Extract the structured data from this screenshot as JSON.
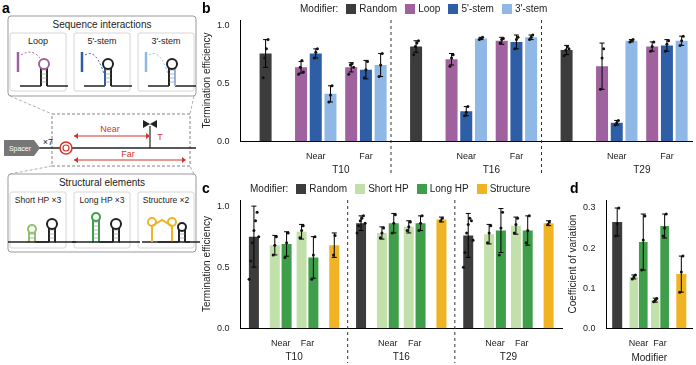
{
  "diagram": {
    "panel_label": "a",
    "sequence_interactions": {
      "title": "Sequence interactions",
      "items": [
        "Loop",
        "5'-stem",
        "3'-stem"
      ]
    },
    "construct": {
      "spacer": "Spacer",
      "spacer_count": "×7",
      "near": "Near",
      "far": "Far",
      "terminator": "T"
    },
    "structural_elements": {
      "title": "Structural elements",
      "items": [
        "Short HP ×3",
        "Long HP ×3",
        "Structure ×2"
      ]
    }
  },
  "chart_data": [
    {
      "panel_label": "b",
      "type": "bar",
      "legend_title": "Modifier:",
      "legend": "top",
      "grid": false,
      "y_label": "Termination efficiency",
      "categories": [
        null,
        "Near",
        "Far",
        null,
        "Near",
        "Far",
        null,
        "Near",
        "Far"
      ],
      "groups": [
        "T10",
        "T16",
        "T29"
      ],
      "ylim": [
        0,
        1.05
      ],
      "yticks": [
        {
          "value": 0,
          "label": "0.0"
        },
        0.5,
        {
          "value": 1,
          "label": "1.0"
        }
      ],
      "series": [
        {
          "name": "Random",
          "color": "#3c3c3c",
          "values": [
            0.76,
            null,
            null,
            0.82,
            null,
            null,
            0.79,
            null,
            null
          ],
          "errors": [
            0.12,
            null,
            null,
            0.05,
            null,
            null,
            0.04,
            null,
            null
          ],
          "points": [
            [
              0.55,
              0.72,
              0.8,
              0.88
            ],
            null,
            null,
            [
              0.75,
              0.82,
              0.85,
              0.87
            ],
            null,
            null,
            [
              0.74,
              0.79,
              0.82,
              0.8
            ],
            null,
            null
          ]
        },
        {
          "name": "Loop",
          "color": "#a0629e",
          "values": [
            null,
            0.64,
            0.64,
            null,
            0.71,
            0.87,
            null,
            0.65,
            0.82
          ],
          "errors": [
            null,
            0.05,
            0.04,
            null,
            0.05,
            0.03,
            null,
            0.2,
            0.04
          ],
          "points": [
            null,
            [
              0.58,
              0.64,
              0.7,
              0.6
            ],
            [
              0.58,
              0.66,
              0.67,
              0.64
            ],
            null,
            [
              0.65,
              0.72,
              0.75
            ],
            [
              0.85,
              0.88,
              0.89
            ],
            null,
            [
              0.45,
              0.72,
              0.8
            ],
            [
              0.78,
              0.82,
              0.86
            ]
          ]
        },
        {
          "name": "5'-stem",
          "color": "#2e5fa6",
          "values": [
            null,
            0.76,
            0.62,
            null,
            0.26,
            0.86,
            null,
            0.16,
            0.83
          ],
          "errors": [
            null,
            0.04,
            0.08,
            null,
            0.04,
            0.06,
            null,
            0.02,
            0.05
          ],
          "points": [
            null,
            [
              0.72,
              0.77,
              0.8
            ],
            [
              0.55,
              0.62,
              0.69
            ],
            null,
            [
              0.22,
              0.25,
              0.3
            ],
            [
              0.8,
              0.88,
              0.9
            ],
            null,
            [
              0.14,
              0.16,
              0.18
            ],
            [
              0.78,
              0.84,
              0.87
            ]
          ]
        },
        {
          "name": "3'-stem",
          "color": "#8fb8e6",
          "values": [
            null,
            0.41,
            0.66,
            null,
            0.89,
            0.9,
            null,
            0.87,
            0.87
          ],
          "errors": [
            null,
            0.07,
            0.1,
            null,
            0.01,
            0.02,
            null,
            0.01,
            0.04
          ],
          "points": [
            null,
            [
              0.34,
              0.4,
              0.48
            ],
            [
              0.56,
              0.66,
              0.76
            ],
            null,
            [
              0.88,
              0.89,
              0.9
            ],
            [
              0.88,
              0.9,
              0.92
            ],
            null,
            [
              0.86,
              0.87,
              0.88
            ],
            [
              0.83,
              0.87,
              0.91
            ]
          ]
        }
      ]
    },
    {
      "panel_label": "c",
      "type": "bar",
      "legend_title": "Modifier:",
      "legend": "top",
      "grid": false,
      "y_label": "Termination efficiency",
      "categories": [
        null,
        "Near",
        "Far",
        null,
        null,
        "Near",
        "Far",
        null,
        null,
        "Near",
        "Far",
        null
      ],
      "groups": [
        "T10",
        "T16",
        "T29"
      ],
      "ylim": [
        0,
        1.05
      ],
      "yticks": [
        {
          "value": 0,
          "label": "0.0"
        },
        0.5,
        {
          "value": 1,
          "label": "1.0"
        }
      ],
      "series": [
        {
          "name": "Random",
          "color": "#3c3c3c",
          "values": [
            0.75,
            null,
            null,
            null,
            0.86,
            null,
            null,
            null,
            0.76,
            null,
            null,
            null
          ],
          "errors": [
            0.25,
            null,
            null,
            null,
            0.06,
            null,
            null,
            null,
            0.18,
            null,
            null,
            null
          ],
          "points": [
            [
              0.4,
              0.55,
              0.7,
              0.8,
              0.88,
              0.95,
              0.75
            ],
            null,
            null,
            null,
            [
              0.78,
              0.84,
              0.88,
              0.9,
              0.92,
              0.86
            ],
            null,
            null,
            null,
            [
              0.5,
              0.62,
              0.78,
              0.85,
              0.9,
              0.88,
              0.72
            ],
            null,
            null,
            null
          ]
        },
        {
          "name": "Short HP",
          "color": "#c2e0a9",
          "values": [
            null,
            0.68,
            0.79,
            null,
            null,
            0.78,
            0.83,
            null,
            null,
            0.77,
            0.84,
            null
          ],
          "errors": [
            null,
            0.08,
            0.06,
            null,
            null,
            0.05,
            0.05,
            null,
            null,
            0.08,
            0.07,
            null
          ],
          "points": [
            null,
            [
              0.6,
              0.68,
              0.75
            ],
            [
              0.74,
              0.8,
              0.84
            ],
            null,
            null,
            [
              0.74,
              0.78,
              0.82
            ],
            [
              0.8,
              0.83,
              0.87
            ],
            null,
            null,
            [
              0.7,
              0.78,
              0.84
            ],
            [
              0.78,
              0.85,
              0.9
            ],
            null
          ]
        },
        {
          "name": "Long HP",
          "color": "#3f9e4a",
          "values": [
            null,
            0.69,
            0.58,
            null,
            null,
            0.86,
            0.86,
            null,
            null,
            0.8,
            0.8,
            null
          ],
          "errors": [
            null,
            0.1,
            0.17,
            null,
            null,
            0.08,
            0.06,
            null,
            null,
            0.18,
            0.12,
            null
          ],
          "points": [
            null,
            [
              0.58,
              0.7,
              0.78
            ],
            [
              0.4,
              0.6,
              0.75
            ],
            null,
            null,
            [
              0.78,
              0.86,
              0.93
            ],
            [
              0.8,
              0.86,
              0.92
            ],
            null,
            null,
            [
              0.6,
              0.82,
              0.95
            ],
            [
              0.7,
              0.8,
              0.92
            ],
            null
          ]
        },
        {
          "name": "Structure",
          "color": "#f0b323",
          "values": [
            null,
            null,
            null,
            0.68,
            null,
            null,
            null,
            0.89,
            null,
            null,
            null,
            0.86
          ],
          "errors": [
            null,
            null,
            null,
            0.1,
            null,
            null,
            null,
            0.02,
            null,
            null,
            null,
            0.02
          ],
          "points": [
            null,
            null,
            null,
            [
              0.6,
              0.76
            ],
            null,
            null,
            null,
            [
              0.88,
              0.9
            ],
            null,
            null,
            null,
            [
              0.85,
              0.87
            ]
          ]
        }
      ]
    },
    {
      "panel_label": "d",
      "type": "bar",
      "grid": false,
      "y_label": "Coefficient of variation",
      "x_label": "Modifier",
      "categories": [
        null,
        "Near",
        "Far",
        null
      ],
      "ylim": [
        0,
        0.32
      ],
      "yticks": [
        {
          "value": 0,
          "label": "0.0"
        },
        0.1,
        0.2,
        0.3
      ],
      "series": [
        {
          "color": "#3c3c3c",
          "values": [
            0.265,
            null,
            null,
            null
          ],
          "errors": [
            0.035,
            null,
            null,
            null
          ],
          "points": [
            [
              0.23,
              0.26,
              0.3
            ],
            null,
            null,
            null
          ]
        },
        {
          "color": "#c2e0a9",
          "values": [
            null,
            0.128,
            0.07,
            null
          ],
          "errors": [
            null,
            0.005,
            0.005,
            null
          ],
          "points": [
            null,
            [
              0.123,
              0.128,
              0.133
            ],
            [
              0.066,
              0.07,
              0.074
            ],
            null
          ]
        },
        {
          "color": "#3f9e4a",
          "values": [
            null,
            0.215,
            0.255,
            null
          ],
          "errors": [
            null,
            0.07,
            0.03,
            null
          ],
          "points": [
            null,
            [
              0.145,
              0.22,
              0.28
            ],
            [
              0.23,
              0.25,
              0.285
            ],
            null
          ]
        },
        {
          "color": "#f0b323",
          "values": [
            null,
            null,
            null,
            0.135
          ],
          "errors": [
            null,
            null,
            null,
            0.045
          ],
          "points": [
            null,
            null,
            null,
            [
              0.09,
              0.14,
              0.18
            ]
          ]
        }
      ]
    }
  ]
}
